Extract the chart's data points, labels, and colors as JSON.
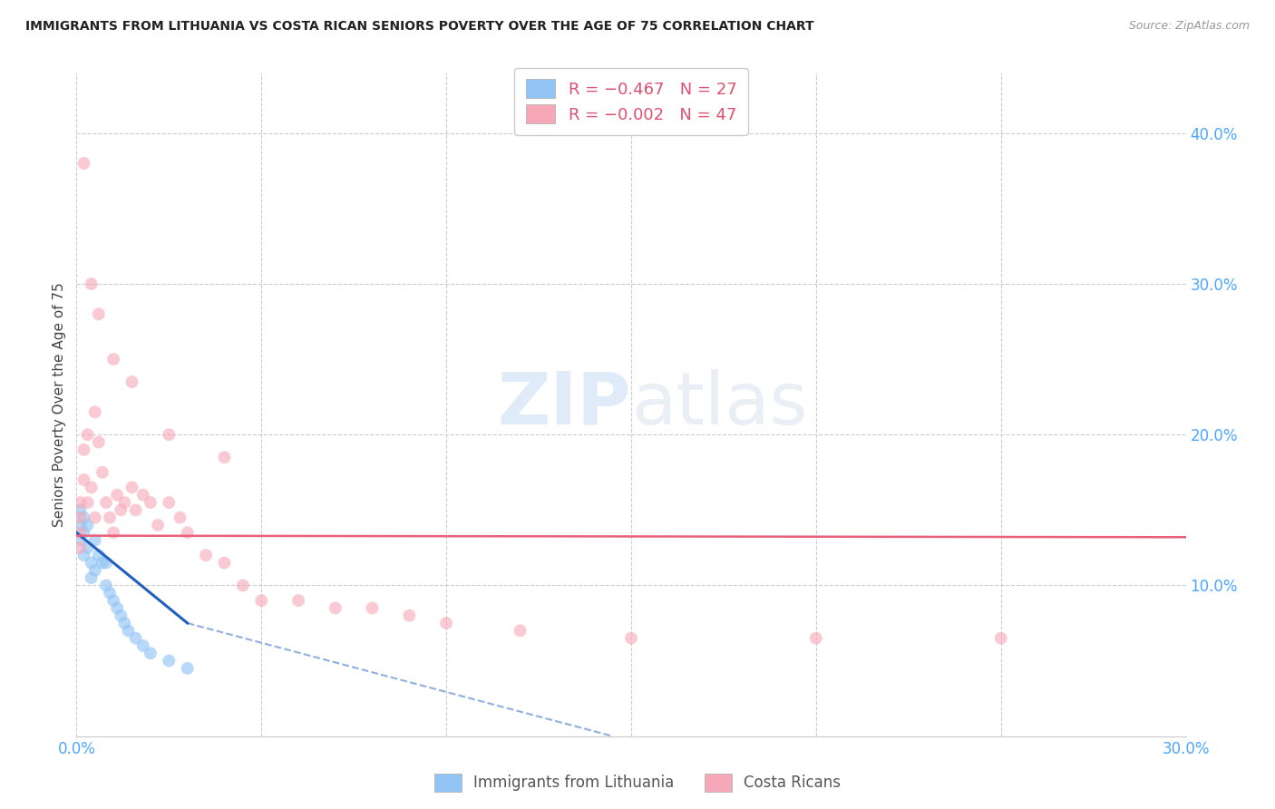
{
  "title": "IMMIGRANTS FROM LITHUANIA VS COSTA RICAN SENIORS POVERTY OVER THE AGE OF 75 CORRELATION CHART",
  "source": "Source: ZipAtlas.com",
  "tick_color": "#4da6ff",
  "ylabel": "Seniors Poverty Over the Age of 75",
  "xlim": [
    0.0,
    0.3
  ],
  "ylim": [
    0.0,
    0.44
  ],
  "x_ticks": [
    0.0,
    0.05,
    0.1,
    0.15,
    0.2,
    0.25,
    0.3
  ],
  "y_ticks": [
    0.0,
    0.1,
    0.2,
    0.3,
    0.4
  ],
  "background_color": "#ffffff",
  "grid_color": "#cccccc",
  "watermark_zip": "ZIP",
  "watermark_atlas": "atlas",
  "legend_label1": "Immigrants from Lithuania",
  "legend_label2": "Costa Ricans",
  "blue_color": "#92c5f5",
  "pink_color": "#f7a8b8",
  "blue_line_color": "#2060c0",
  "pink_line_color": "#e8607a",
  "marker_size": 100,
  "blue_alpha": 0.65,
  "pink_alpha": 0.6,
  "blue_scatter_x": [
    0.001,
    0.001,
    0.001,
    0.002,
    0.002,
    0.002,
    0.003,
    0.003,
    0.004,
    0.004,
    0.005,
    0.005,
    0.006,
    0.007,
    0.008,
    0.008,
    0.009,
    0.01,
    0.011,
    0.012,
    0.013,
    0.014,
    0.016,
    0.018,
    0.02,
    0.025,
    0.03
  ],
  "blue_scatter_y": [
    0.15,
    0.14,
    0.13,
    0.145,
    0.135,
    0.12,
    0.14,
    0.125,
    0.115,
    0.105,
    0.13,
    0.11,
    0.12,
    0.115,
    0.115,
    0.1,
    0.095,
    0.09,
    0.085,
    0.08,
    0.075,
    0.07,
    0.065,
    0.06,
    0.055,
    0.05,
    0.045
  ],
  "pink_scatter_x": [
    0.001,
    0.001,
    0.001,
    0.001,
    0.002,
    0.002,
    0.003,
    0.003,
    0.004,
    0.005,
    0.005,
    0.006,
    0.007,
    0.008,
    0.009,
    0.01,
    0.011,
    0.012,
    0.013,
    0.015,
    0.016,
    0.018,
    0.02,
    0.022,
    0.025,
    0.028,
    0.03,
    0.035,
    0.04,
    0.045,
    0.05,
    0.06,
    0.07,
    0.08,
    0.09,
    0.1,
    0.12,
    0.15,
    0.2,
    0.25,
    0.002,
    0.004,
    0.006,
    0.01,
    0.015,
    0.025,
    0.04
  ],
  "pink_scatter_y": [
    0.155,
    0.145,
    0.135,
    0.125,
    0.19,
    0.17,
    0.2,
    0.155,
    0.165,
    0.215,
    0.145,
    0.195,
    0.175,
    0.155,
    0.145,
    0.135,
    0.16,
    0.15,
    0.155,
    0.165,
    0.15,
    0.16,
    0.155,
    0.14,
    0.155,
    0.145,
    0.135,
    0.12,
    0.115,
    0.1,
    0.09,
    0.09,
    0.085,
    0.085,
    0.08,
    0.075,
    0.07,
    0.065,
    0.065,
    0.065,
    0.38,
    0.3,
    0.28,
    0.25,
    0.235,
    0.2,
    0.185
  ],
  "blue_line_x0": 0.0,
  "blue_line_y0": 0.135,
  "blue_line_x1": 0.03,
  "blue_line_y1": 0.075,
  "blue_line_xdash": 0.03,
  "blue_line_ydash": 0.075,
  "blue_line_xend": 0.145,
  "blue_line_yend": 0.0,
  "pink_line_x0": 0.0,
  "pink_line_y0": 0.133,
  "pink_line_x1": 0.3,
  "pink_line_y1": 0.132
}
